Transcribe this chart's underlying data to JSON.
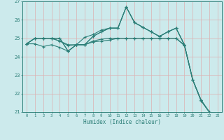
{
  "xlabel": "Humidex (Indice chaleur)",
  "x": [
    0,
    1,
    2,
    3,
    4,
    5,
    6,
    7,
    8,
    9,
    10,
    11,
    12,
    13,
    14,
    15,
    16,
    17,
    18,
    19,
    20,
    21,
    22,
    23
  ],
  "lines": [
    [
      24.7,
      25.0,
      25.0,
      25.0,
      25.0,
      24.3,
      24.65,
      24.65,
      25.1,
      25.35,
      25.55,
      25.55,
      26.7,
      25.85,
      25.6,
      25.35,
      25.1,
      25.35,
      25.55,
      24.65,
      null,
      null,
      null,
      null
    ],
    [
      24.7,
      25.0,
      25.0,
      25.0,
      25.0,
      24.3,
      24.65,
      24.65,
      25.1,
      25.35,
      25.55,
      25.55,
      26.7,
      25.85,
      25.6,
      25.35,
      25.1,
      25.35,
      25.55,
      24.65,
      22.75,
      21.65,
      21.0,
      null
    ],
    [
      24.7,
      25.0,
      25.0,
      25.0,
      24.85,
      24.65,
      24.65,
      25.05,
      25.2,
      25.45,
      25.55,
      25.55,
      26.7,
      25.85,
      25.6,
      25.35,
      25.1,
      25.35,
      25.55,
      24.65,
      22.75,
      21.65,
      21.0,
      null
    ],
    [
      24.7,
      25.0,
      25.0,
      25.0,
      24.85,
      24.6,
      24.65,
      24.65,
      24.85,
      24.95,
      25.0,
      25.0,
      25.0,
      25.0,
      25.0,
      25.0,
      25.0,
      25.0,
      25.0,
      24.65,
      22.75,
      21.65,
      21.0,
      null
    ],
    [
      24.7,
      24.7,
      24.55,
      24.65,
      24.5,
      24.3,
      24.65,
      24.65,
      24.8,
      24.85,
      24.9,
      25.0,
      25.0,
      25.0,
      25.0,
      25.0,
      25.0,
      25.0,
      25.0,
      24.6,
      22.75,
      21.6,
      21.0,
      null
    ]
  ],
  "color": "#2d7f78",
  "bg_color": "#cceaec",
  "grid_color": "#ddb0b0",
  "ylim": [
    21,
    27
  ],
  "yticks": [
    21,
    22,
    23,
    24,
    25,
    26,
    27
  ],
  "xticks": [
    0,
    1,
    2,
    3,
    4,
    5,
    6,
    7,
    8,
    9,
    10,
    11,
    12,
    13,
    14,
    15,
    16,
    17,
    18,
    19,
    20,
    21,
    22,
    23
  ],
  "xlim": [
    -0.5,
    23.5
  ]
}
